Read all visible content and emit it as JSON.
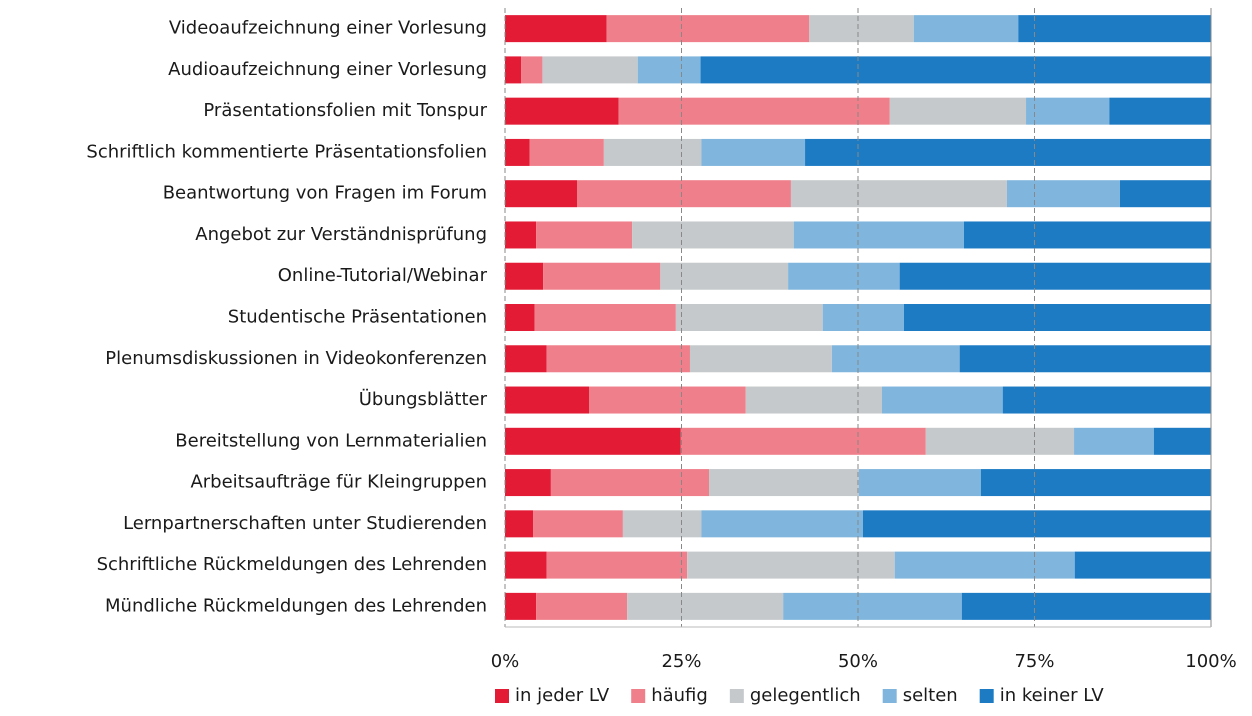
{
  "chart_data": {
    "type": "bar",
    "orientation": "horizontal",
    "stacked": true,
    "categories": [
      "Videoaufzeichnung einer Vorlesung",
      "Audioaufzeichnung einer Vorlesung",
      "Präsentationsfolien mit Tonspur",
      "Schriftlich kommentierte Präsentationsfolien",
      "Beantwortung von Fragen im Forum",
      "Angebot zur Verständnisprüfung",
      "Online-Tutorial/Webinar",
      "Studentische Präsentationen",
      "Plenumsdiskussionen in Videokonferenzen",
      "Übungsblätter",
      "Bereitstellung von Lernmaterialien",
      "Arbeitsaufträge für Kleingruppen",
      "Lernpartnerschaften unter Studierenden",
      "Schriftliche Rückmeldungen des Lehrenden",
      "Mündliche Rückmeldungen des Lehrenden"
    ],
    "series": [
      {
        "name": "in jeder LV",
        "color": "#e31b35",
        "values": [
          14.4,
          2.3,
          16.1,
          3.5,
          10.2,
          4.4,
          5.4,
          4.2,
          5.9,
          11.9,
          24.9,
          6.5,
          4.0,
          5.9,
          4.4
        ]
      },
      {
        "name": "häufig",
        "color": "#ef7f8a",
        "values": [
          28.7,
          3.0,
          38.4,
          10.5,
          30.3,
          13.6,
          16.6,
          20.0,
          20.3,
          22.2,
          34.7,
          22.4,
          12.7,
          19.9,
          12.9
        ]
      },
      {
        "name": "gelegentlich",
        "color": "#c5c9cb",
        "values": [
          14.8,
          13.5,
          19.3,
          13.8,
          30.6,
          22.9,
          18.1,
          20.8,
          20.1,
          19.3,
          21.0,
          21.2,
          11.1,
          29.4,
          22.1
        ]
      },
      {
        "name": "selten",
        "color": "#80b6dd",
        "values": [
          14.8,
          8.9,
          11.8,
          14.7,
          16.0,
          24.1,
          15.8,
          11.5,
          18.1,
          17.1,
          11.3,
          17.3,
          22.9,
          25.5,
          25.3
        ]
      },
      {
        "name": "in keiner LV",
        "color": "#1d7bc4",
        "values": [
          27.3,
          72.4,
          14.4,
          57.5,
          12.9,
          35.0,
          44.1,
          43.5,
          35.6,
          29.5,
          8.1,
          32.6,
          49.3,
          19.3,
          35.3
        ]
      }
    ],
    "xlim": [
      0,
      100
    ],
    "xticks": [
      {
        "value": 0,
        "label": "0%"
      },
      {
        "value": 25,
        "label": "25%"
      },
      {
        "value": 50,
        "label": "50%"
      },
      {
        "value": 75,
        "label": "75%"
      },
      {
        "value": 100,
        "label": "100%"
      }
    ],
    "grid": true,
    "legend": "bottom"
  }
}
